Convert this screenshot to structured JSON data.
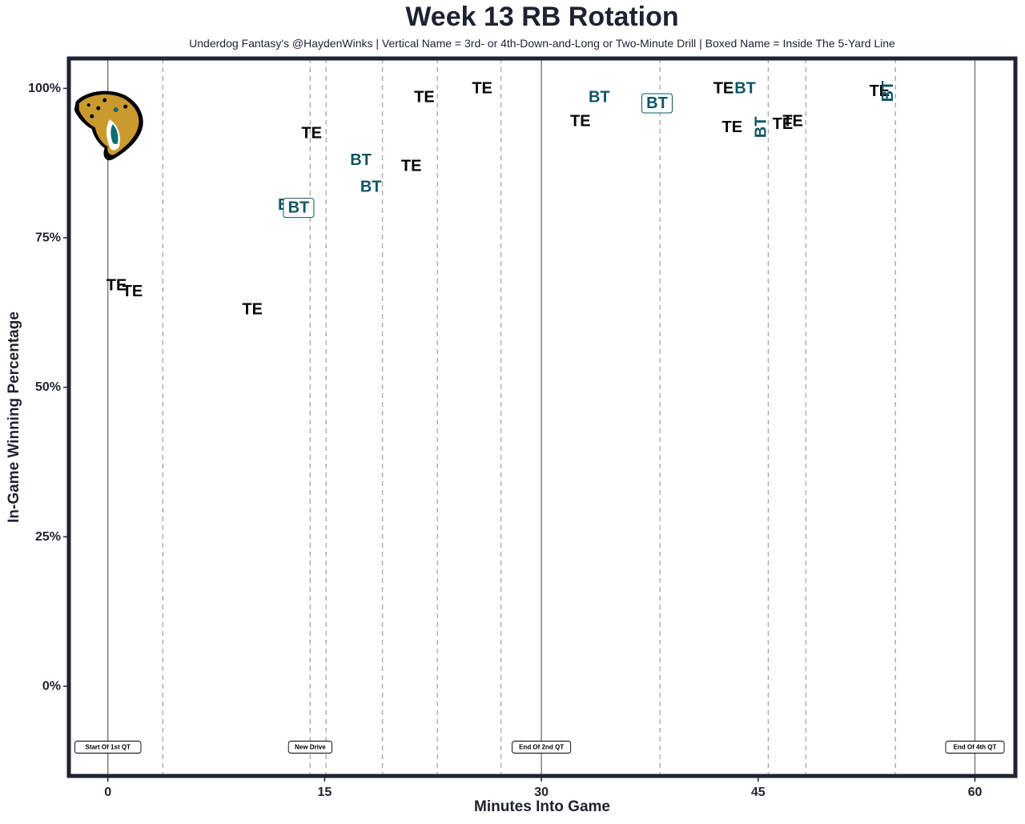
{
  "chart_data": {
    "type": "scatter",
    "title": "Week 13 RB Rotation",
    "subtitle": "Underdog Fantasy's @HaydenWinks | Vertical Name = 3rd- or 4th-Down-and-Long or Two-Minute Drill | Boxed Name = Inside The 5-Yard Line",
    "xlabel": "Minutes Into Game",
    "ylabel": "In-Game Winning Percentage",
    "xlim": [
      -2.7,
      62.8
    ],
    "ylim": [
      -15,
      105
    ],
    "x_ticks": [
      0,
      15,
      30,
      45,
      60
    ],
    "x_tick_labels": [
      "0",
      "15",
      "30",
      "45",
      "60"
    ],
    "y_ticks": [
      0,
      25,
      50,
      75,
      100
    ],
    "y_tick_labels": [
      "0%",
      "25%",
      "50%",
      "75%",
      "100%"
    ],
    "quarter_lines": [
      0,
      30,
      60
    ],
    "drive_lines": [
      3.8,
      14.0,
      15.1,
      19.0,
      22.8,
      27.2,
      38.2,
      45.7,
      48.3,
      54.5
    ],
    "event_labels": [
      {
        "x": 0,
        "label": "Start Of 1st QT"
      },
      {
        "x": 14.0,
        "label": "New Drive"
      },
      {
        "x": 30,
        "label": "End Of 2nd QT"
      },
      {
        "x": 60,
        "label": "End Of 4th QT"
      }
    ],
    "colors": {
      "TE": "#000000",
      "BT": "#0f5563",
      "axis": "#1f2230",
      "drive_line": "#aaaaaa",
      "quarter_line": "#777777"
    },
    "logo": "jaguar-logo",
    "points": [
      {
        "x": 0.6,
        "y": 67,
        "label": "TE",
        "style": "normal"
      },
      {
        "x": 1.7,
        "y": 66,
        "label": "TE",
        "style": "normal"
      },
      {
        "x": 10.0,
        "y": 63,
        "label": "TE",
        "style": "normal"
      },
      {
        "x": 12.5,
        "y": 80.5,
        "label": "BT",
        "style": "normal"
      },
      {
        "x": 13.2,
        "y": 80,
        "label": "BT",
        "style": "boxed"
      },
      {
        "x": 14.1,
        "y": 92.5,
        "label": "TE",
        "style": "normal"
      },
      {
        "x": 17.5,
        "y": 88,
        "label": "BT",
        "style": "normal"
      },
      {
        "x": 18.2,
        "y": 83.5,
        "label": "BT",
        "style": "normal"
      },
      {
        "x": 21.0,
        "y": 87,
        "label": "TE",
        "style": "normal"
      },
      {
        "x": 21.9,
        "y": 98.5,
        "label": "TE",
        "style": "normal"
      },
      {
        "x": 25.9,
        "y": 100,
        "label": "TE",
        "style": "normal"
      },
      {
        "x": 32.7,
        "y": 94.5,
        "label": "TE",
        "style": "normal"
      },
      {
        "x": 34.0,
        "y": 98.5,
        "label": "BT",
        "style": "normal"
      },
      {
        "x": 38.0,
        "y": 97.5,
        "label": "BT",
        "style": "boxed"
      },
      {
        "x": 42.6,
        "y": 100,
        "label": "TE",
        "style": "normal"
      },
      {
        "x": 44.1,
        "y": 100,
        "label": "BT",
        "style": "normal"
      },
      {
        "x": 43.2,
        "y": 93.5,
        "label": "TE",
        "style": "normal"
      },
      {
        "x": 45.2,
        "y": 93.5,
        "label": "BT",
        "style": "vertical"
      },
      {
        "x": 46.7,
        "y": 94,
        "label": "TE",
        "style": "normal"
      },
      {
        "x": 47.4,
        "y": 94.5,
        "label": "TE",
        "style": "normal"
      },
      {
        "x": 53.4,
        "y": 99.5,
        "label": "TE",
        "style": "normal"
      },
      {
        "x": 54.0,
        "y": 99.5,
        "label": "BT",
        "style": "vertical"
      }
    ]
  }
}
